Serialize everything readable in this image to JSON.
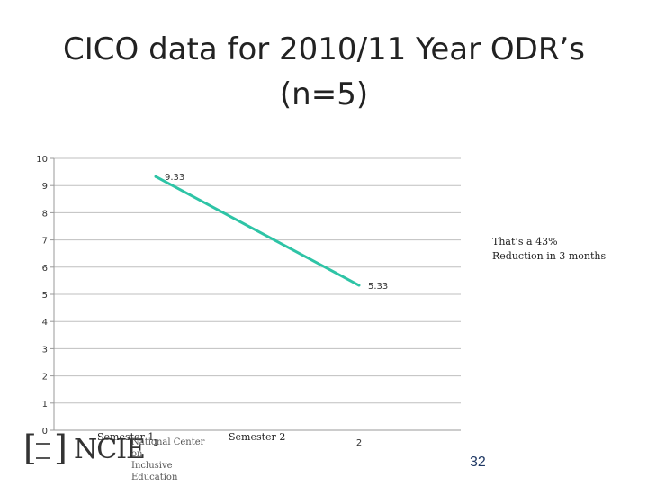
{
  "slide": {
    "title_line1": "CICO data for 2010/11 Year ODR’s",
    "title_line2": "(n=5)",
    "annotation_line1": "That’s a 43%",
    "annotation_line2": "Reduction in 3 months",
    "semester_labels": [
      "Semester 1",
      "Semester 2"
    ],
    "logo": {
      "name": "NCIE",
      "subtitle_line1": "National Center on",
      "subtitle_line2": "Inclusive Education"
    },
    "page_number": "32"
  },
  "chart_data": {
    "type": "line",
    "title": "",
    "xlabel": "",
    "ylabel": "",
    "x": [
      1,
      2
    ],
    "xlim": [
      0.5,
      2.5
    ],
    "ylim": [
      0,
      10
    ],
    "yticks": [
      0,
      1,
      2,
      3,
      4,
      5,
      6,
      7,
      8,
      9,
      10
    ],
    "xticks": [
      1,
      2
    ],
    "grid": true,
    "legend": "none",
    "series": [
      {
        "values": [
          9.33,
          5.33
        ],
        "labels": [
          "9.33",
          "5.33"
        ],
        "color": "#2ec4a6"
      }
    ]
  }
}
